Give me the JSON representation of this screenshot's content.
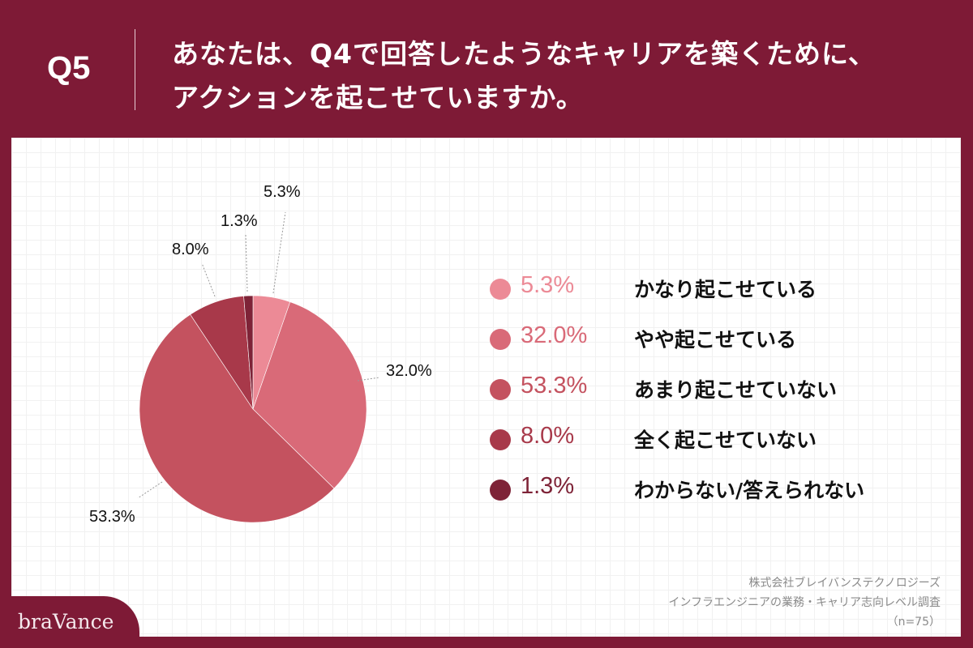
{
  "header": {
    "question_number": "Q5",
    "title_line1": "あなたは、Q4で回答したようなキャリアを築くために、",
    "title_line2": "アクションを起こせていますか。"
  },
  "colors": {
    "background": "#7E1A36",
    "slice_1": "#EC8A96",
    "slice_2": "#D96A78",
    "slice_3": "#C4525F",
    "slice_4": "#A8394A",
    "slice_5": "#7E2337"
  },
  "chart_data": {
    "type": "pie",
    "title": "あなたは、Q4で回答したようなキャリアを築くために、アクションを起こせていますか。",
    "categories": [
      "かなり起こせている",
      "やや起こせている",
      "あまり起こせていない",
      "全く起こせていない",
      "わからない/答えられない"
    ],
    "values": [
      5.3,
      32.0,
      53.3,
      8.0,
      1.3
    ],
    "labels": [
      "5.3%",
      "32.0%",
      "53.3%",
      "8.0%",
      "1.3%"
    ],
    "colors": [
      "#EC8A96",
      "#D96A78",
      "#C4525F",
      "#A8394A",
      "#7E2337"
    ],
    "start_angle": "12 o'clock",
    "direction": "clockwise",
    "legend_position": "right",
    "n": 75
  },
  "pie_labels": {
    "s1": "5.3%",
    "s2": "32.0%",
    "s3": "53.3%",
    "s4": "8.0%",
    "s5": "1.3%"
  },
  "legend": [
    {
      "pct": "5.3%",
      "label": "かなり起こせている",
      "color": "#EC8A96"
    },
    {
      "pct": "32.0%",
      "label": "やや起こせている",
      "color": "#D96A78"
    },
    {
      "pct": "53.3%",
      "label": "あまり起こせていない",
      "color": "#C4525F"
    },
    {
      "pct": "8.0%",
      "label": "全く起こせていない",
      "color": "#A8394A"
    },
    {
      "pct": "1.3%",
      "label": "わからない/答えられない",
      "color": "#7E2337"
    }
  ],
  "source": {
    "line1": "株式会社ブレイバンステクノロジーズ",
    "line2": "インフラエンジニアの業務・キャリア志向レベル調査",
    "line3": "（n=75）"
  },
  "logo": {
    "text": "braVance"
  }
}
